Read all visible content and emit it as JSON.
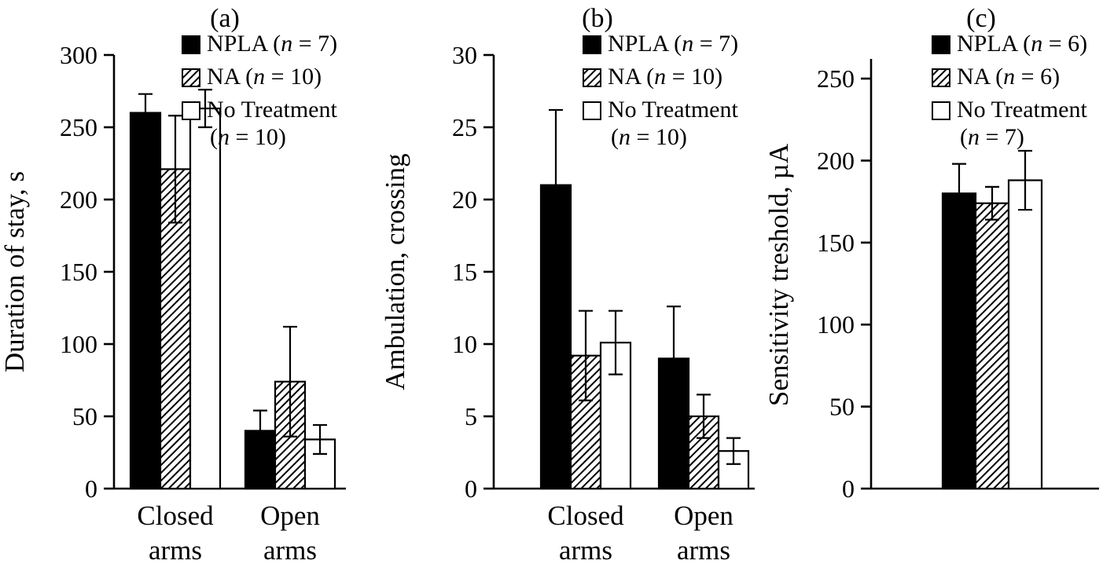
{
  "colors": {
    "foreground": "#000000",
    "background": "#ffffff"
  },
  "chart_data": [
    {
      "type": "bar",
      "panel_label": "(a)",
      "ylabel": "Duration of stay, s",
      "ylim": [
        0,
        300
      ],
      "yticks": [
        0,
        50,
        100,
        150,
        200,
        250,
        300
      ],
      "categories": [
        "Closed arms",
        "Open arms"
      ],
      "grid": false,
      "legend_position": "top-right",
      "series": [
        {
          "name": "NPLA",
          "style": "solid",
          "legend_lines": [
            "NPLA (n = 7)"
          ],
          "values": [
            260,
            40
          ],
          "errors": [
            13,
            14
          ]
        },
        {
          "name": "NA",
          "style": "hatch",
          "legend_lines": [
            "NA (n = 10)"
          ],
          "values": [
            221,
            74
          ],
          "errors": [
            37,
            38
          ]
        },
        {
          "name": "No Treatment",
          "style": "open",
          "legend_lines": [
            "No Treatment",
            "(n = 10)"
          ],
          "values": [
            263,
            34
          ],
          "errors": [
            13,
            10
          ]
        }
      ]
    },
    {
      "type": "bar",
      "panel_label": "(b)",
      "ylabel": "Ambulation, crossing",
      "ylim": [
        0,
        30
      ],
      "yticks": [
        0,
        5,
        10,
        15,
        20,
        25,
        30
      ],
      "categories": [
        "Closed arms",
        "Open arms"
      ],
      "grid": false,
      "legend_position": "top-right",
      "series": [
        {
          "name": "NPLA",
          "style": "solid",
          "legend_lines": [
            "NPLA (n = 7)"
          ],
          "values": [
            21,
            9
          ],
          "errors": [
            5.2,
            3.6
          ]
        },
        {
          "name": "NA",
          "style": "hatch",
          "legend_lines": [
            "NA (n = 10)"
          ],
          "values": [
            9.2,
            5
          ],
          "errors": [
            3.1,
            1.5
          ]
        },
        {
          "name": "No Treatment",
          "style": "open",
          "legend_lines": [
            "No Treatment",
            "(n = 10)"
          ],
          "values": [
            10.1,
            2.6
          ],
          "errors": [
            2.2,
            0.9
          ]
        }
      ]
    },
    {
      "type": "bar",
      "panel_label": "(c)",
      "ylabel": "Sensitivity treshold, µA",
      "ylim": [
        0,
        250
      ],
      "yticks": [
        0,
        50,
        100,
        150,
        200,
        250
      ],
      "categories": [],
      "grid": false,
      "legend_position": "top-right",
      "series": [
        {
          "name": "NPLA",
          "style": "solid",
          "legend_lines": [
            "NPLA (n = 6)"
          ],
          "values": [
            180
          ],
          "errors": [
            18
          ]
        },
        {
          "name": "NA",
          "style": "hatch",
          "legend_lines": [
            "NA (n = 6)"
          ],
          "values": [
            174
          ],
          "errors": [
            10
          ]
        },
        {
          "name": "No Treatment",
          "style": "open",
          "legend_lines": [
            "No Treatment",
            "(n = 7)"
          ],
          "values": [
            188
          ],
          "errors": [
            18
          ]
        }
      ]
    }
  ]
}
